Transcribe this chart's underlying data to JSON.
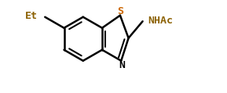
{
  "bg_color": "#ffffff",
  "bond_color": "#000000",
  "label_color": "#8B6000",
  "s_color": "#cc6600",
  "n_color": "#000000",
  "line_width": 1.8,
  "figsize": [
    2.89,
    1.19
  ],
  "dpi": 100,
  "et_label": "Et",
  "nhac_label": "NHAc",
  "s_label": "S",
  "n_label": "N",
  "font_size": 9.5,
  "xlim": [
    0,
    2.89
  ],
  "ylim": [
    0,
    1.19
  ]
}
